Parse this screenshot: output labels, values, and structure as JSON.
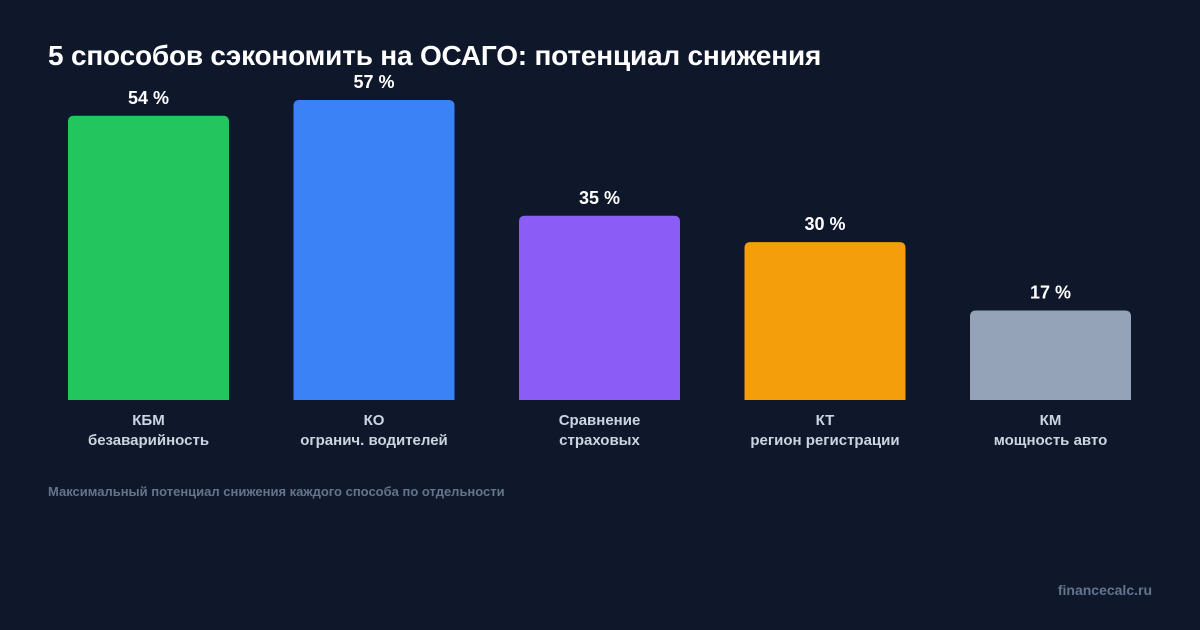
{
  "chart_data": {
    "type": "bar",
    "title": "5 способов сэкономить на ОСАГО: потенциал снижения",
    "categories": [
      [
        "КБМ",
        "безаварийность"
      ],
      [
        "КО",
        "огранич. водителей"
      ],
      [
        "Сравнение",
        "страховых"
      ],
      [
        "КТ",
        "регион регистрации"
      ],
      [
        "КМ",
        "мощность авто"
      ]
    ],
    "values": [
      54,
      57,
      35,
      30,
      17
    ],
    "value_labels": [
      "54 %",
      "57 %",
      "35 %",
      "30 %",
      "17 %"
    ],
    "colors": [
      "#22c55e",
      "#3b82f6",
      "#8b5cf6",
      "#f59e0b",
      "#94a3b8"
    ],
    "ylim": [
      0,
      57
    ],
    "grid": false,
    "legend": "none"
  },
  "footnote": "Максимальный потенциал снижения каждого способа по отдельности",
  "brand": "financecalc.ru"
}
